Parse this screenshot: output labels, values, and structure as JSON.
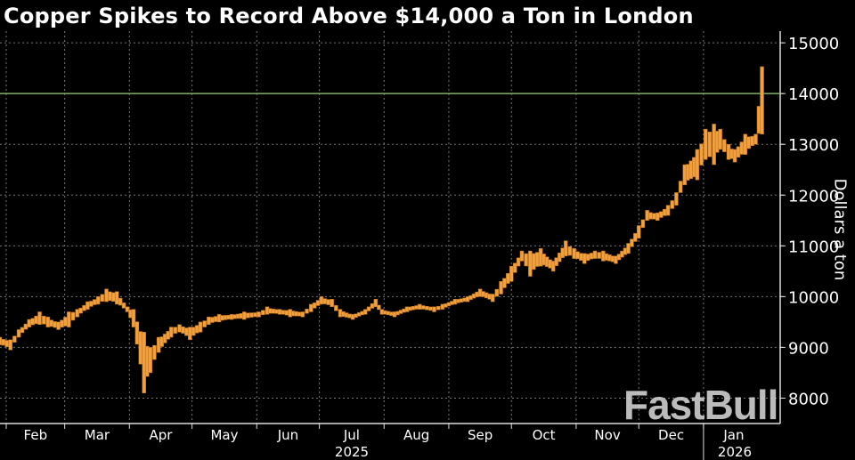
{
  "chart_data": {
    "type": "ohlc-bar",
    "title": "Copper Spikes to Record Above $14,000 a Ton in London",
    "ylabel": "Dollars a ton",
    "xlabel": "",
    "ylim": [
      7500,
      15230
    ],
    "yticks": [
      8000,
      9000,
      10000,
      11000,
      12000,
      13000,
      14000,
      15000
    ],
    "y_axis_side": "right",
    "grid": true,
    "reference_line": {
      "value": 14000,
      "color": "#7fb069"
    },
    "bar_color": "#f0a040",
    "xticks": [
      {
        "label": "Feb",
        "start": "2025-02-01"
      },
      {
        "label": "Mar",
        "start": "2025-03-01"
      },
      {
        "label": "Apr",
        "start": "2025-04-01"
      },
      {
        "label": "May",
        "start": "2025-05-01"
      },
      {
        "label": "Jun",
        "start": "2025-06-01"
      },
      {
        "label": "Jul",
        "start": "2025-07-01"
      },
      {
        "label": "Aug",
        "start": "2025-08-01"
      },
      {
        "label": "Sep",
        "start": "2025-09-01"
      },
      {
        "label": "Oct",
        "start": "2025-10-01"
      },
      {
        "label": "Nov",
        "start": "2025-11-01"
      },
      {
        "label": "Dec",
        "start": "2025-12-01"
      },
      {
        "label": "Jan",
        "start": "2026-01-01"
      }
    ],
    "years": [
      {
        "label": "2025"
      },
      {
        "label": "2026"
      }
    ],
    "points": [
      [
        "2025-01-29",
        9050,
        9200
      ],
      [
        "2025-02-03",
        8950,
        9150
      ],
      [
        "2025-02-07",
        9200,
        9350
      ],
      [
        "2025-02-12",
        9400,
        9550
      ],
      [
        "2025-02-17",
        9450,
        9700
      ],
      [
        "2025-02-21",
        9400,
        9600
      ],
      [
        "2025-02-26",
        9350,
        9500
      ],
      [
        "2025-03-03",
        9400,
        9700
      ],
      [
        "2025-03-07",
        9600,
        9750
      ],
      [
        "2025-03-12",
        9750,
        9900
      ],
      [
        "2025-03-17",
        9850,
        10000
      ],
      [
        "2025-03-21",
        9900,
        10150
      ],
      [
        "2025-03-26",
        9850,
        10100
      ],
      [
        "2025-03-31",
        9700,
        9800
      ],
      [
        "2025-04-03",
        9400,
        9750
      ],
      [
        "2025-04-08",
        8100,
        9300
      ],
      [
        "2025-04-11",
        8500,
        9000
      ],
      [
        "2025-04-15",
        8900,
        9200
      ],
      [
        "2025-04-21",
        9200,
        9400
      ],
      [
        "2025-04-25",
        9300,
        9450
      ],
      [
        "2025-04-30",
        9150,
        9400
      ],
      [
        "2025-05-05",
        9300,
        9500
      ],
      [
        "2025-05-09",
        9450,
        9600
      ],
      [
        "2025-05-14",
        9500,
        9650
      ],
      [
        "2025-05-20",
        9550,
        9650
      ],
      [
        "2025-05-26",
        9550,
        9700
      ],
      [
        "2025-06-02",
        9600,
        9700
      ],
      [
        "2025-06-06",
        9650,
        9800
      ],
      [
        "2025-06-12",
        9650,
        9750
      ],
      [
        "2025-06-17",
        9600,
        9750
      ],
      [
        "2025-06-23",
        9600,
        9700
      ],
      [
        "2025-06-27",
        9700,
        9850
      ],
      [
        "2025-07-02",
        9850,
        10000
      ],
      [
        "2025-07-07",
        9800,
        9950
      ],
      [
        "2025-07-11",
        9600,
        9750
      ],
      [
        "2025-07-17",
        9550,
        9650
      ],
      [
        "2025-07-23",
        9650,
        9750
      ],
      [
        "2025-07-28",
        9800,
        9950
      ],
      [
        "2025-07-31",
        9650,
        9750
      ],
      [
        "2025-08-06",
        9600,
        9700
      ],
      [
        "2025-08-12",
        9700,
        9800
      ],
      [
        "2025-08-18",
        9750,
        9850
      ],
      [
        "2025-08-25",
        9700,
        9800
      ],
      [
        "2025-08-29",
        9750,
        9850
      ],
      [
        "2025-09-04",
        9850,
        9950
      ],
      [
        "2025-09-10",
        9900,
        10000
      ],
      [
        "2025-09-16",
        10000,
        10150
      ],
      [
        "2025-09-22",
        9900,
        10050
      ],
      [
        "2025-09-26",
        10050,
        10300
      ],
      [
        "2025-10-01",
        10300,
        10600
      ],
      [
        "2025-10-06",
        10700,
        10900
      ],
      [
        "2025-10-10",
        10400,
        10900
      ],
      [
        "2025-10-15",
        10600,
        10950
      ],
      [
        "2025-10-21",
        10500,
        10700
      ],
      [
        "2025-10-27",
        10800,
        11100
      ],
      [
        "2025-10-31",
        10750,
        10950
      ],
      [
        "2025-11-05",
        10650,
        10850
      ],
      [
        "2025-11-10",
        10750,
        10900
      ],
      [
        "2025-11-14",
        10700,
        10900
      ],
      [
        "2025-11-20",
        10650,
        10800
      ],
      [
        "2025-11-26",
        10850,
        11050
      ],
      [
        "2025-12-01",
        11150,
        11400
      ],
      [
        "2025-12-05",
        11500,
        11700
      ],
      [
        "2025-12-10",
        11500,
        11650
      ],
      [
        "2025-12-15",
        11600,
        11800
      ],
      [
        "2025-12-19",
        11800,
        12050
      ],
      [
        "2025-12-23",
        12200,
        12600
      ],
      [
        "2025-12-29",
        12300,
        12900
      ],
      [
        "2026-01-02",
        12700,
        13300
      ],
      [
        "2026-01-06",
        12600,
        13400
      ],
      [
        "2026-01-09",
        12900,
        13300
      ],
      [
        "2026-01-13",
        12700,
        13000
      ],
      [
        "2026-01-16",
        12650,
        12900
      ],
      [
        "2026-01-21",
        12800,
        13200
      ],
      [
        "2026-01-26",
        13000,
        13200
      ],
      [
        "2026-01-29",
        13200,
        14530
      ]
    ]
  },
  "watermark": "FastBull"
}
